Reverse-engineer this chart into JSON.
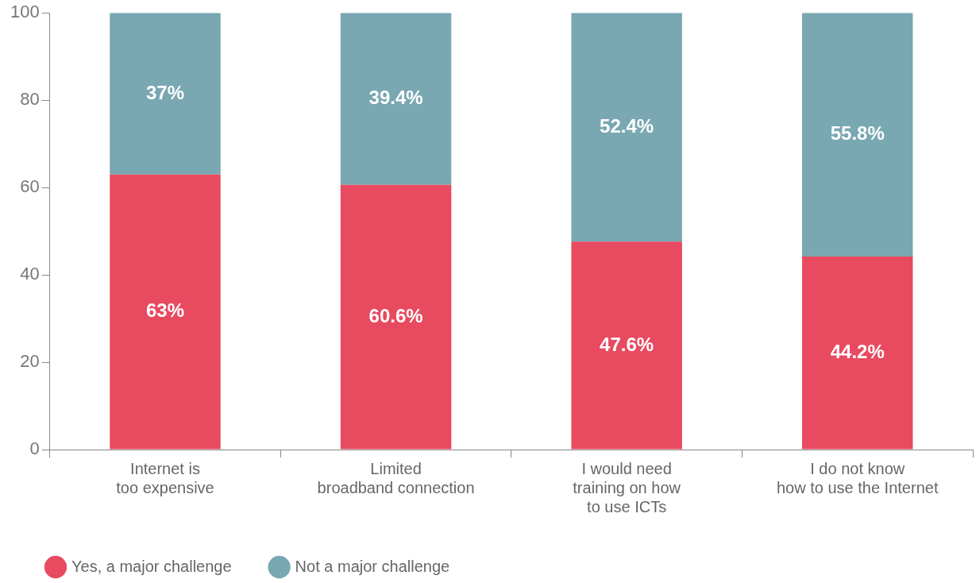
{
  "chart_data": {
    "type": "bar",
    "stacked": true,
    "categories": [
      "Internet is\ntoo expensive",
      "Limited\nbroadband connection",
      "I would need\ntraining on how\nto use ICTs",
      "I do not know\nhow to use the Internet"
    ],
    "series": [
      {
        "name": "Yes, a major challenge",
        "color": "#e84a5f",
        "values": [
          63,
          60.6,
          47.6,
          44.2
        ],
        "value_labels": [
          "63%",
          "60.6%",
          "47.6%",
          "44.2%"
        ]
      },
      {
        "name": "Not a major challenge",
        "color": "#79a7b2",
        "values": [
          37,
          39.4,
          52.4,
          55.8
        ],
        "value_labels": [
          "37%",
          "39.4%",
          "52.4%",
          "55.8%"
        ]
      }
    ],
    "ylim": [
      0,
      100
    ],
    "yticks": [
      0,
      20,
      40,
      60,
      80,
      100
    ],
    "grid": false,
    "legend": "bottom left"
  }
}
